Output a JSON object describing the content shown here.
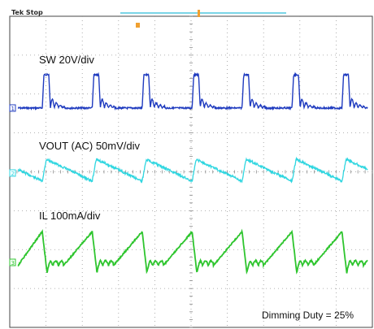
{
  "scope": {
    "status": "Tek Stop",
    "footnote": "Dimming Duty = 25%"
  },
  "chart_data": {
    "type": "line",
    "title": "",
    "grid": true,
    "divisions": {
      "x": 10,
      "y": 8
    },
    "series": [
      {
        "name": "SW 20V/div",
        "channel": "1",
        "color": "#1f3bbf",
        "shape": "switch-node pulses with ringing",
        "periods_shown": 7
      },
      {
        "name": "VOUT (AC) 50mV/div",
        "channel": "2",
        "color": "#2fd6e0",
        "shape": "sawtooth ripple (fast rise, slow decay)",
        "periods_shown": 7
      },
      {
        "name": "IL 100mA/div",
        "channel": "3",
        "color": "#2ec52e",
        "shape": "triangular ramp with ringing after reset",
        "periods_shown": 7
      }
    ],
    "duty": 0.25
  }
}
